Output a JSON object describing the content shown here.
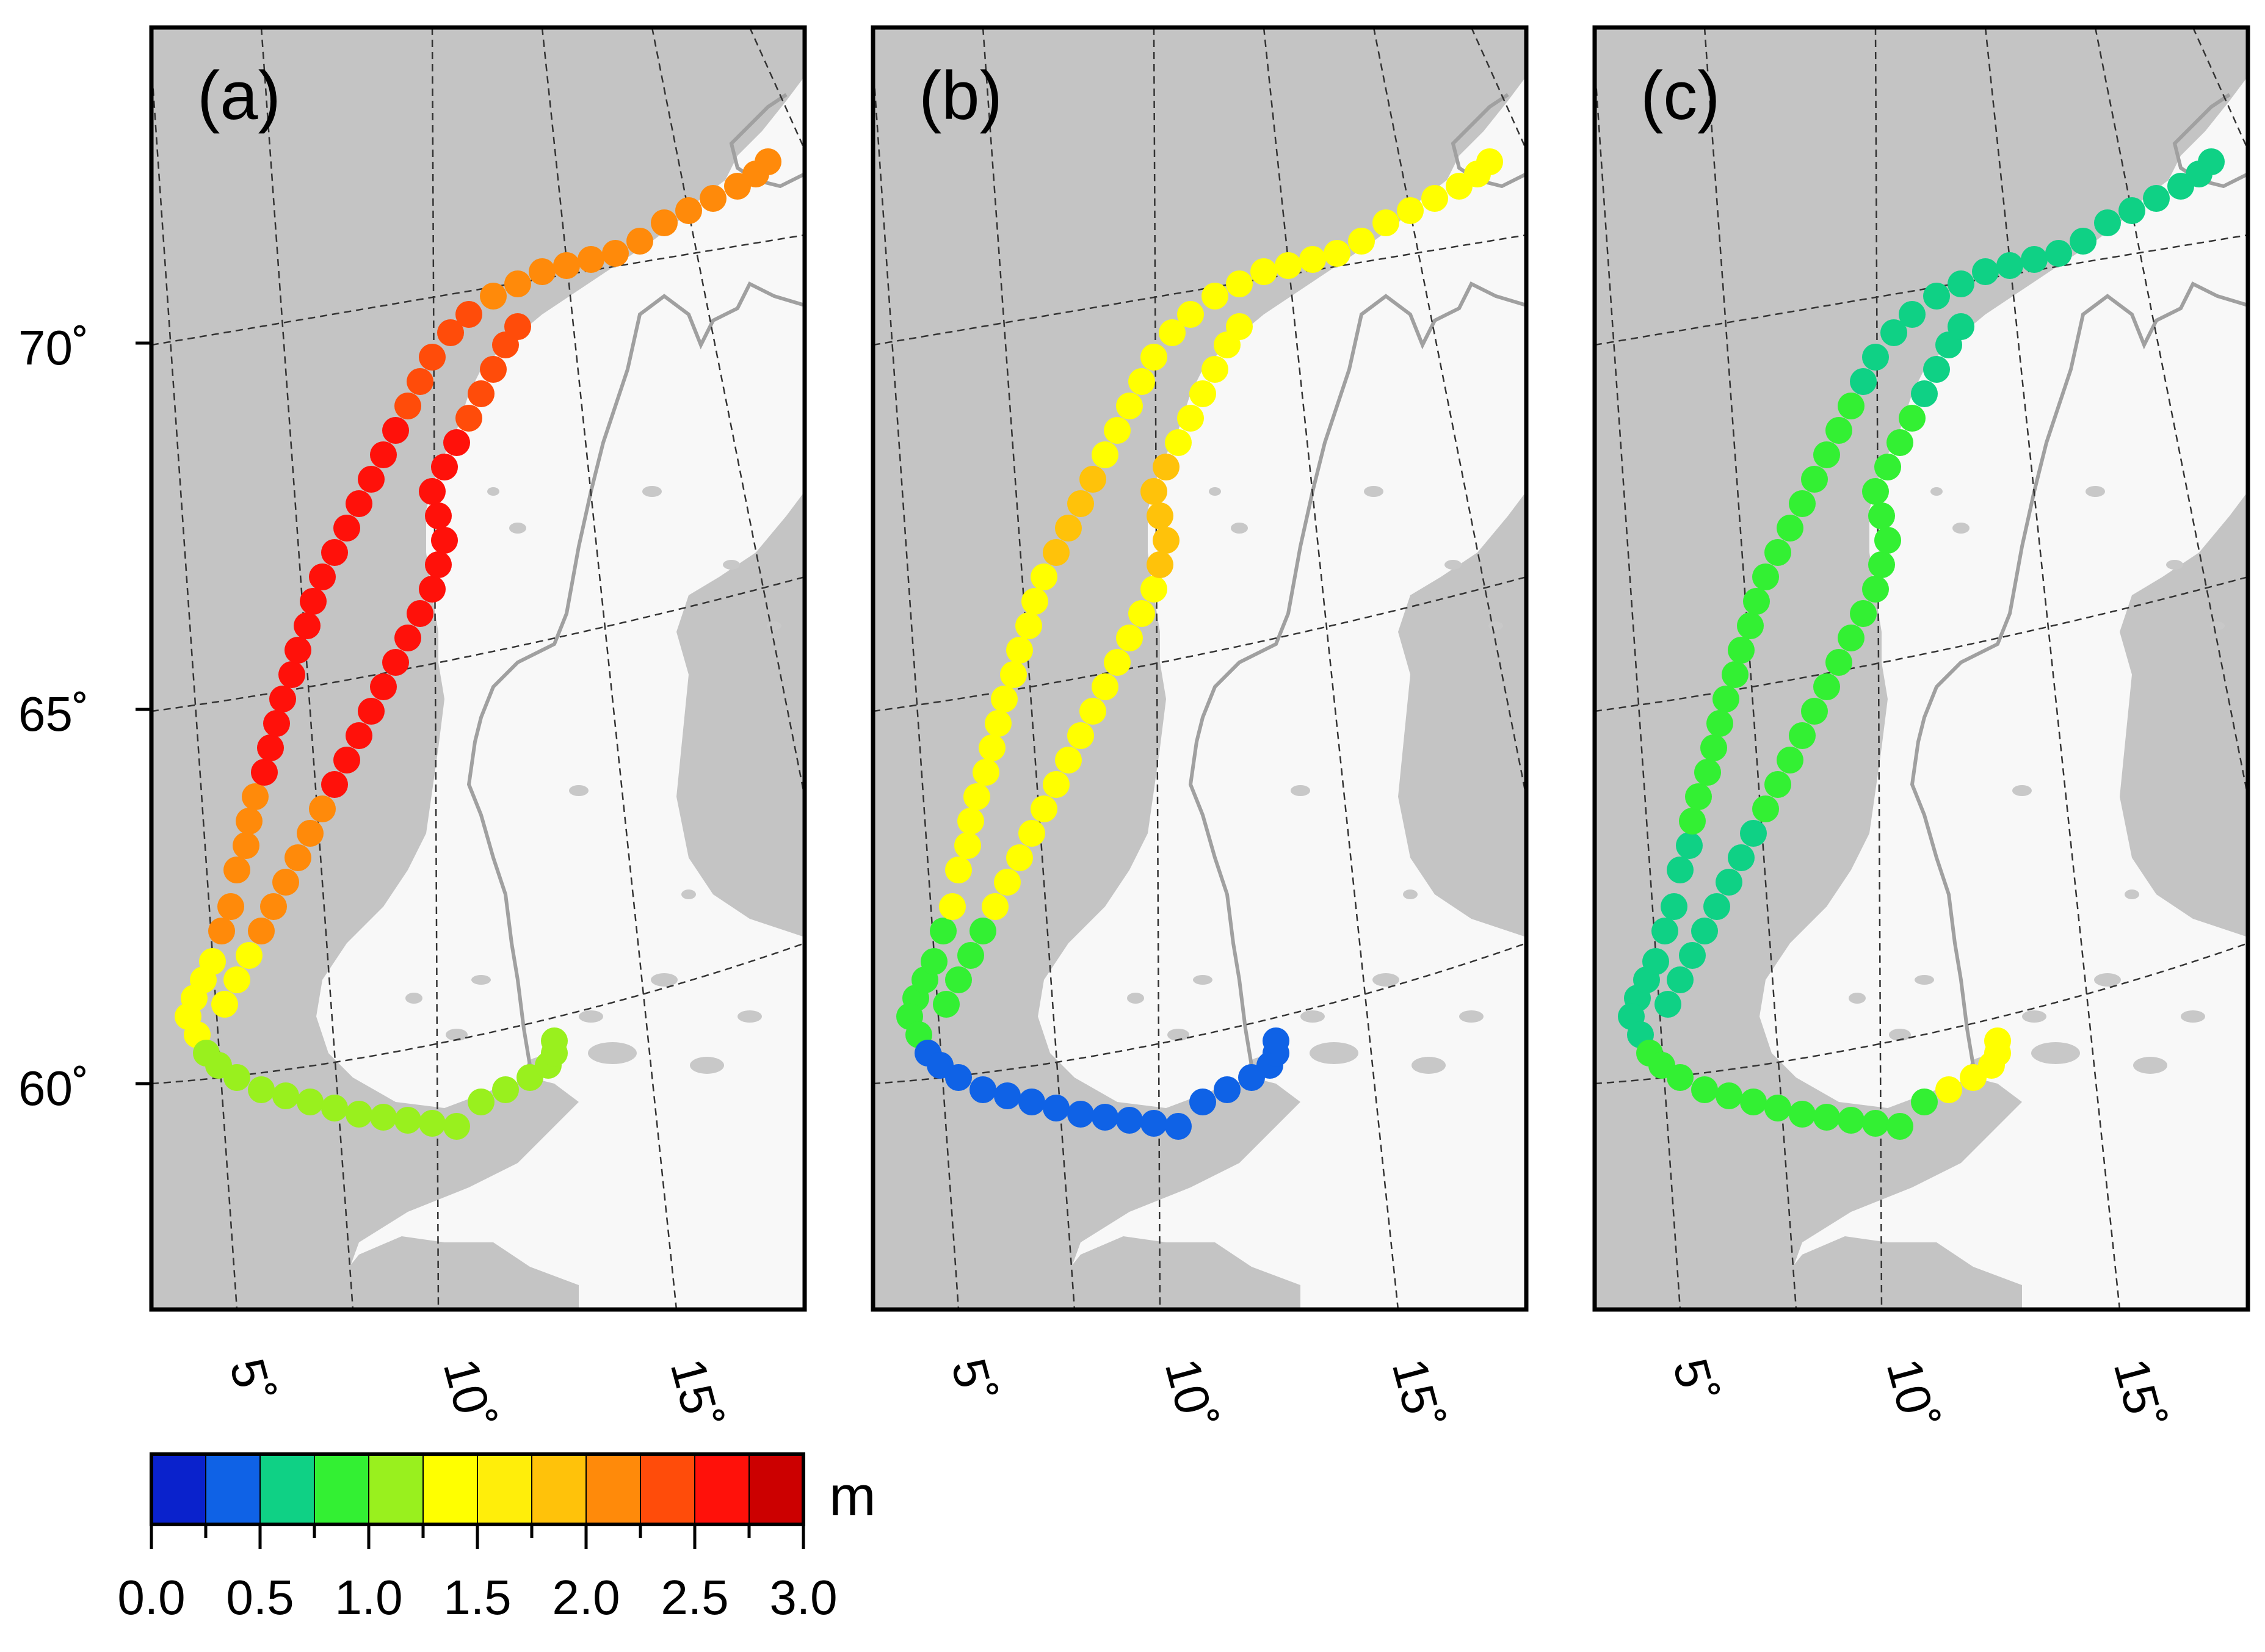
{
  "figure": {
    "panels": [
      {
        "label": "(a)"
      },
      {
        "label": "(b)"
      },
      {
        "label": "(c)"
      }
    ],
    "latitude_ticks": [
      "70˚",
      "65˚",
      "60˚"
    ],
    "longitude_ticks": [
      "5˚",
      "10˚",
      "15˚"
    ],
    "colorbar": {
      "unit": "m",
      "tick_labels": [
        "0.0",
        "0.5",
        "1.0",
        "1.5",
        "2.0",
        "2.5",
        "3.0"
      ],
      "colors": [
        "#0a22cc",
        "#0f62e6",
        "#0fd185",
        "#33f033",
        "#99f01e",
        "#ffff00",
        "#ffee0a",
        "#ffc20a",
        "#ff8a0a",
        "#ff4c0a",
        "#ff110a",
        "#cc0000"
      ]
    }
  },
  "colors": {
    "sea": "#c4c4c4",
    "land": "#f8f8f8",
    "lake": "#c8c8c8",
    "border": "#a0a0a0",
    "frame": "#000000"
  }
}
